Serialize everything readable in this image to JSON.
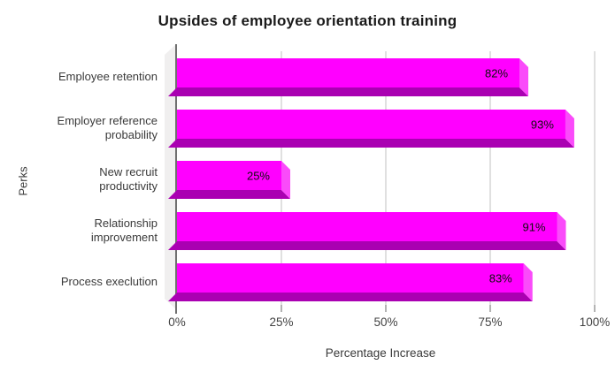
{
  "chart_data": {
    "type": "bar",
    "orientation": "horizontal",
    "style": "3d",
    "title": "Upsides of employee orientation training",
    "xlabel": "Percentage Increase",
    "ylabel": "Perks",
    "categories": [
      "Employee retention",
      "Employer reference\nprobability",
      "New recruit\nproductivity",
      "Relationship\nimprovement",
      "Process execlution"
    ],
    "values": [
      82,
      93,
      25,
      91,
      83
    ],
    "data_labels": [
      "82%",
      "93%",
      "25%",
      "91%",
      "83%"
    ],
    "xlim": [
      0,
      100
    ],
    "x_tick_labels": [
      "0%",
      "25%",
      "50%",
      "75%",
      "100%"
    ],
    "grid": "vertical",
    "legend": "none",
    "colors": {
      "bar_face": "#FF00FF",
      "bar_side": "#FA4BFA",
      "bar_bottom": "#AA00B2",
      "wall": "#F0EFEF",
      "gridline": "#D9D9D9",
      "axis": "#707070",
      "tick": "#9B9B9B",
      "value_label": "#0F0F0F"
    }
  }
}
